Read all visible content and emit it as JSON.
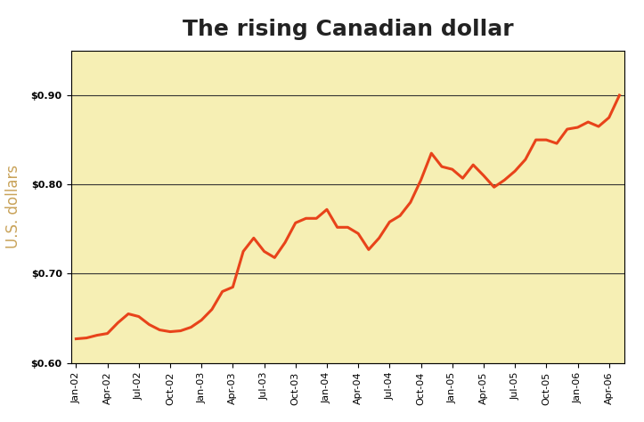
{
  "chart_data": {
    "type": "line",
    "title": "The rising Canadian dollar",
    "y_label": "U.S. dollars",
    "categories": [
      "Jan-02",
      null,
      null,
      "Apr-02",
      null,
      null,
      "Jul-02",
      null,
      null,
      "Oct-02",
      null,
      null,
      "Jan-03",
      null,
      null,
      "Apr-03",
      null,
      null,
      "Jul-03",
      null,
      null,
      "Oct-03",
      null,
      null,
      "Jan-04",
      null,
      null,
      "Apr-04",
      null,
      null,
      "Jul-04",
      null,
      null,
      "Oct-04",
      null,
      null,
      "Jan-05",
      null,
      null,
      "Apr-05",
      null,
      null,
      "Jul-05",
      null,
      null,
      "Oct-05",
      null,
      null,
      "Jan-06",
      null,
      null,
      "Apr-06",
      null
    ],
    "values": [
      0.627,
      0.628,
      0.631,
      0.633,
      0.645,
      0.655,
      0.652,
      0.643,
      0.637,
      0.635,
      0.636,
      0.64,
      0.648,
      0.66,
      0.68,
      0.685,
      0.725,
      0.74,
      0.725,
      0.718,
      0.735,
      0.757,
      0.762,
      0.762,
      0.772,
      0.752,
      0.752,
      0.745,
      0.727,
      0.74,
      0.758,
      0.765,
      0.78,
      0.805,
      0.835,
      0.82,
      0.817,
      0.807,
      0.822,
      0.81,
      0.797,
      0.805,
      0.815,
      0.828,
      0.85,
      0.85,
      0.846,
      0.862,
      0.864,
      0.87,
      0.865,
      0.875,
      0.9
    ],
    "color": "#e8431a",
    "ylim": [
      0.6,
      0.95
    ],
    "yticks": [
      {
        "value": 0.6,
        "label": "$0.60"
      },
      {
        "value": 0.7,
        "label": "$0.70"
      },
      {
        "value": 0.8,
        "label": "$0.80"
      },
      {
        "value": 0.9,
        "label": "$0.90"
      }
    ],
    "grid": true
  }
}
